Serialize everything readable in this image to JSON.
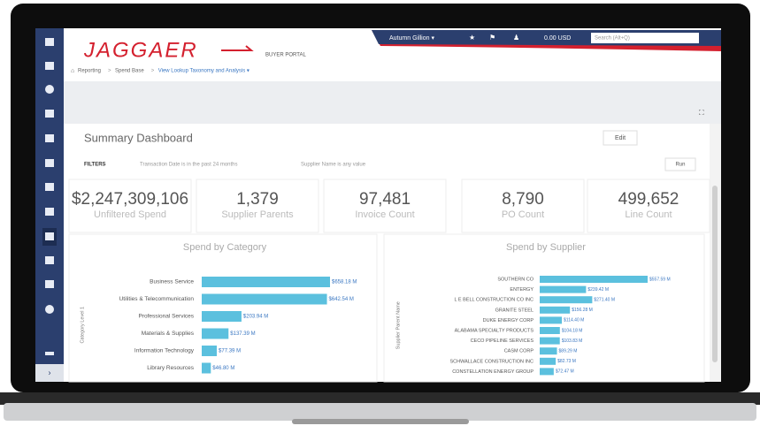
{
  "header": {
    "logo": "JAGGAER",
    "portal": "BUYER PORTAL",
    "user": "Autumn Gillion ▾",
    "cart": "0.00 USD",
    "search_placeholder": "Search (Alt+Q)"
  },
  "breadcrumb": [
    "Reporting",
    "Spend Base",
    "View Lookup Taxonomy and Analysis ▾"
  ],
  "dashboard": {
    "title": "Summary Dashboard",
    "edit": "Edit",
    "filters_label": "FILTERS",
    "filter_1": "Transaction Date is in the past 24 months",
    "filter_2": "Supplier Name is any value",
    "run": "Run"
  },
  "kpis": [
    {
      "value": "$2,247,309,106",
      "label": "Unfiltered Spend"
    },
    {
      "value": "1,379",
      "label": "Supplier Parents"
    },
    {
      "value": "97,481",
      "label": "Invoice Count"
    },
    {
      "value": "8,790",
      "label": "PO Count"
    },
    {
      "value": "499,652",
      "label": "Line Count"
    }
  ],
  "charts": [
    {
      "type": "bar",
      "title": "Spend by Category",
      "axis_label": "Category Level 1",
      "color": "#5bc0de",
      "categories": [
        "Business Service",
        "Utilities & Telecommunication",
        "Professional Services",
        "Materials & Supplies",
        "Information Technology",
        "Library Resources"
      ],
      "values": [
        658.18,
        642.54,
        203.94,
        137.39,
        77.39,
        46.8
      ],
      "value_labels": [
        "$658.18 M",
        "$642.54 M",
        "$203.94 M",
        "$137.39 M",
        "$77.39 M",
        "$46.80 M"
      ]
    },
    {
      "type": "bar",
      "title": "Spend by Supplier",
      "axis_label": "Supplier Parent Name",
      "color": "#5bc0de",
      "categories": [
        "SOUTHERN CO",
        "ENTERGY",
        "L E BELL CONSTRUCTION CO INC",
        "GRANITE STEEL",
        "DUKE ENERGY CORP",
        "ALABAMA SPECIALTY PRODUCTS",
        "CECO PIPELINE SERVICES",
        "CASM CORP",
        "SCHWALLACE CONSTRUCTION INC",
        "CONSTELLATION ENERGY GROUP"
      ],
      "values": [
        557.59,
        239.42,
        271.4,
        156.28,
        114.4,
        104.18,
        103.83,
        89.29,
        82.73,
        72.47
      ],
      "value_labels": [
        "$557.59 M",
        "$239.42 M",
        "$271.40 M",
        "$156.28 M",
        "$114.40 M",
        "$104.18 M",
        "$103.83 M",
        "$89.29 M",
        "$82.73 M",
        "$72.47 M"
      ]
    }
  ]
}
